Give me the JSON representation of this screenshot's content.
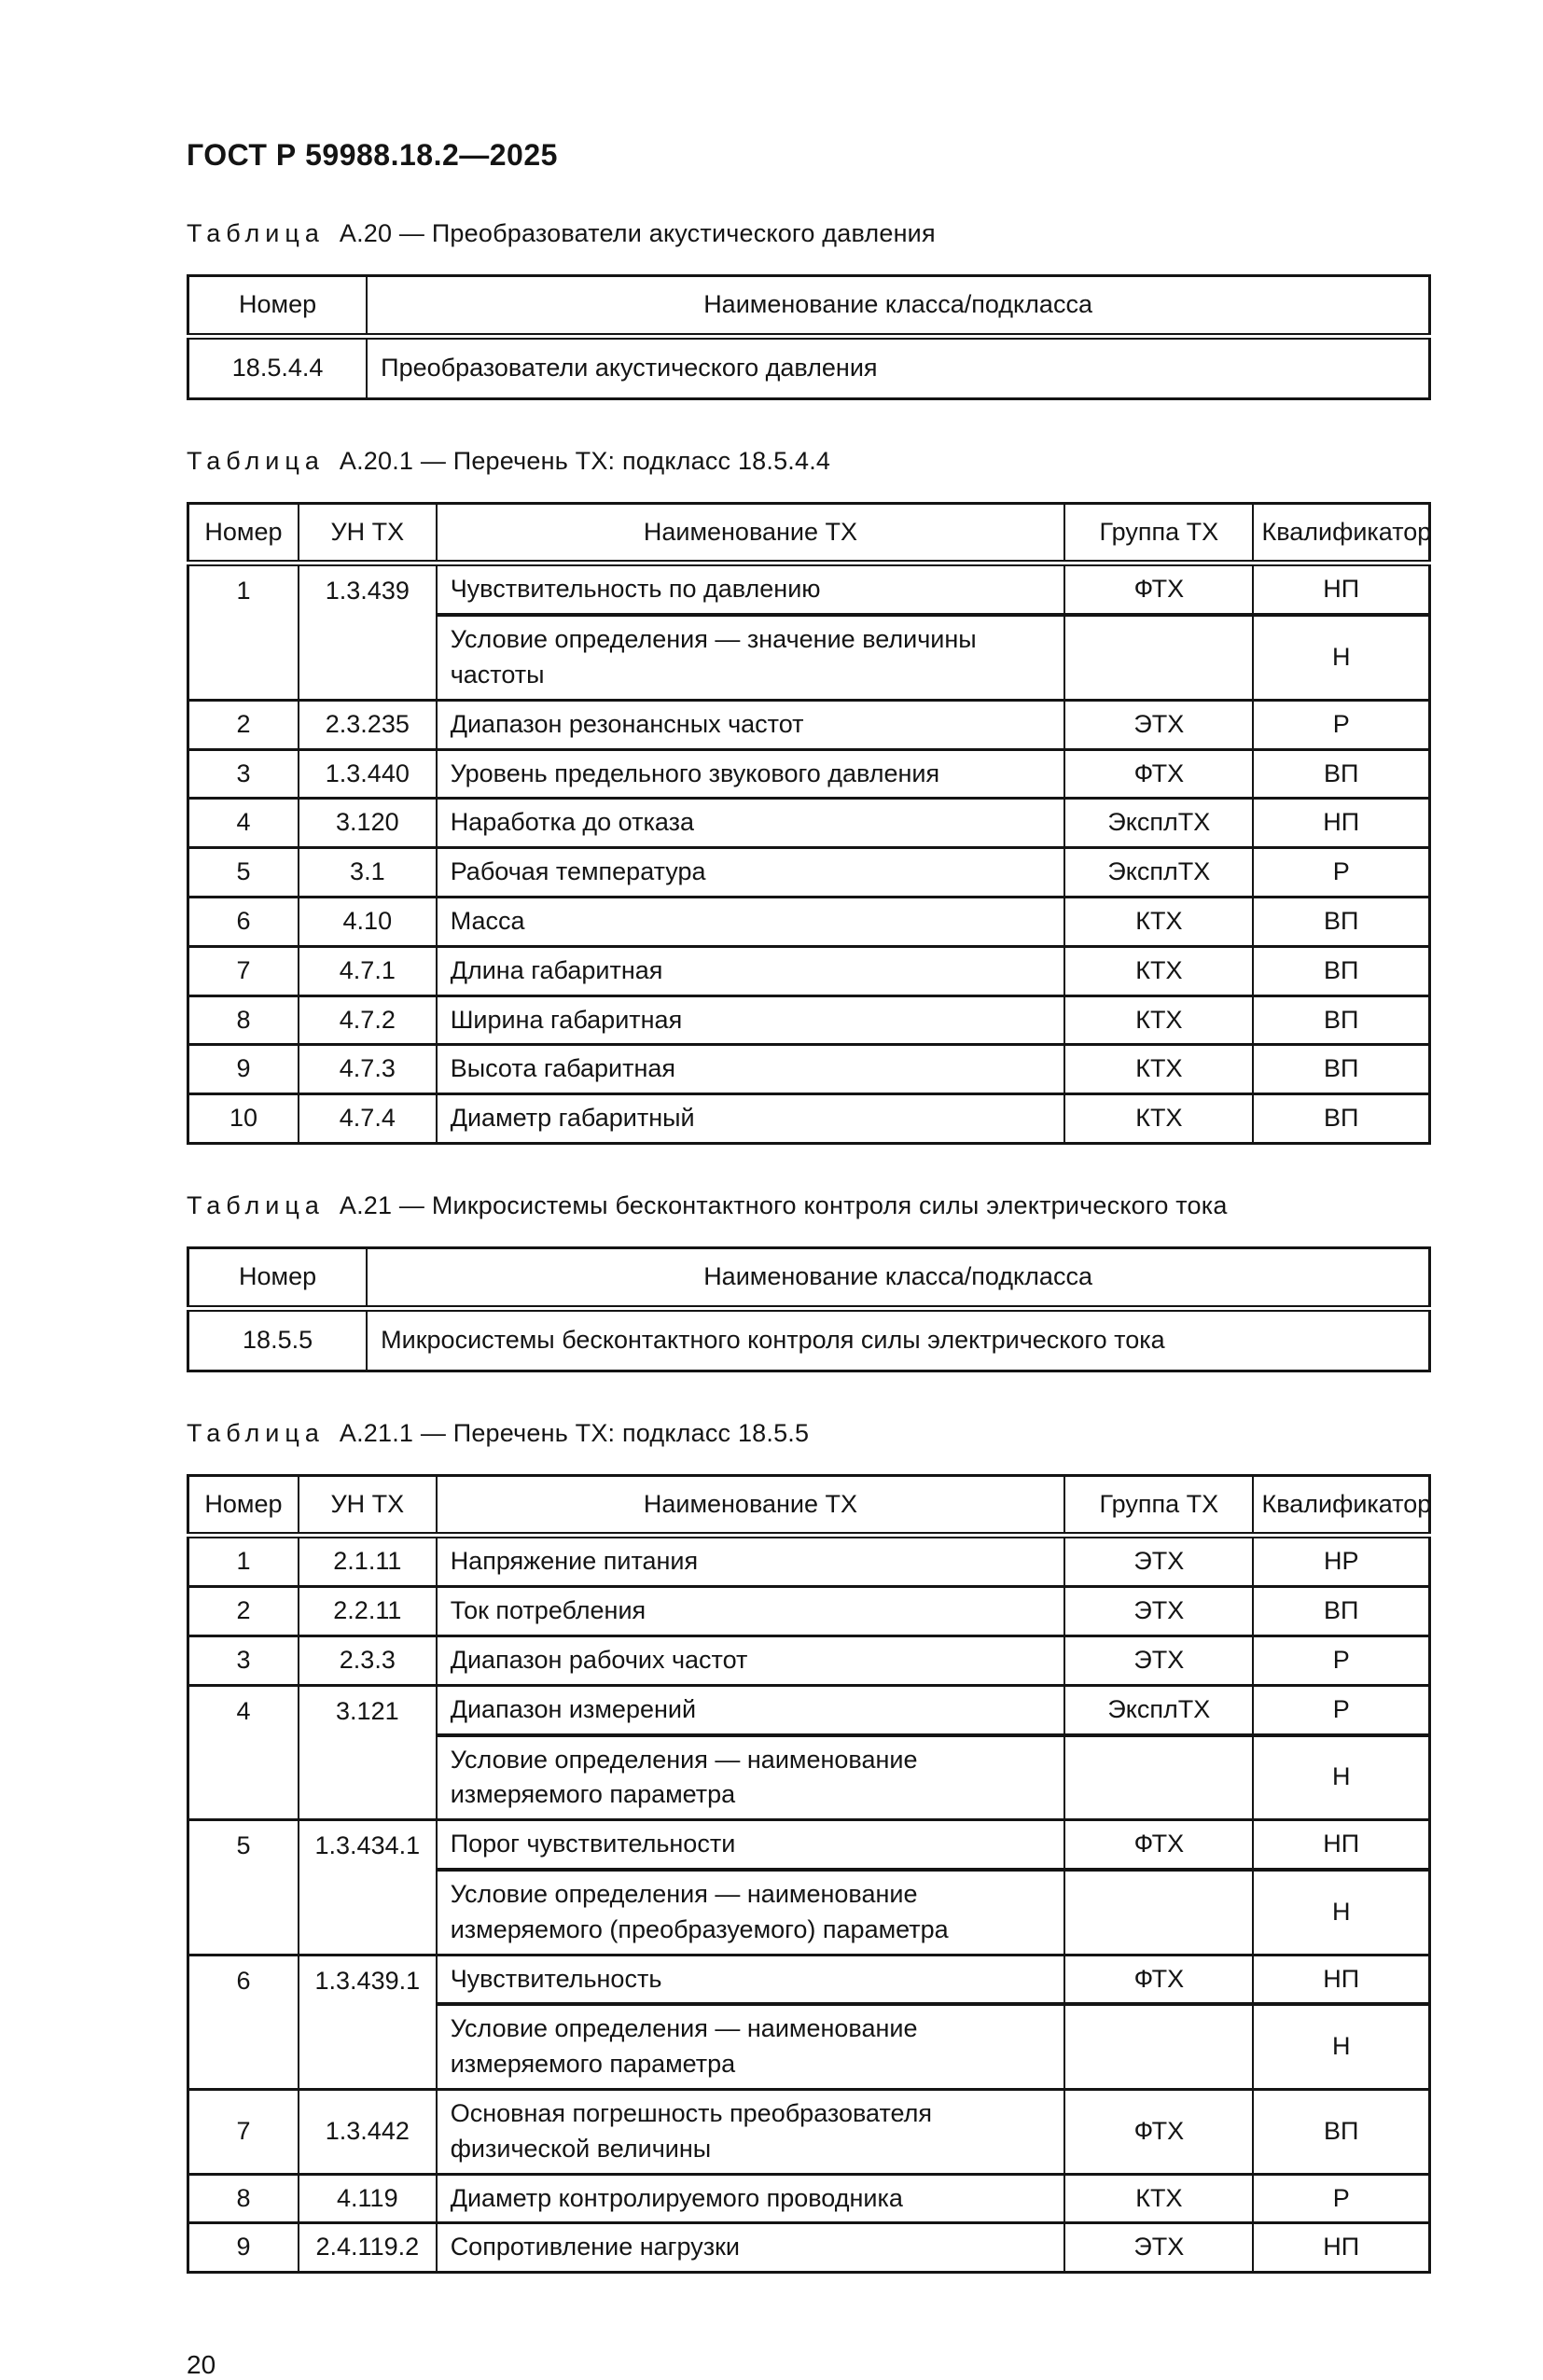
{
  "page": {
    "doc_code": "ГОСТ Р 59988.18.2—2025",
    "page_number": "20"
  },
  "colors": {
    "background": "#ffffff",
    "text": "#141414",
    "border": "#141414"
  },
  "sections": [
    {
      "type": "class",
      "caption": {
        "label": "Таблица",
        "text": "А.20 — Преобразователи акустического давления"
      },
      "headers": [
        "Номер",
        "Наименование класса/подкласса"
      ],
      "rows": [
        [
          "18.5.4.4",
          "Преобразователи акустического давления"
        ]
      ]
    },
    {
      "type": "tx",
      "caption": {
        "label": "Таблица",
        "text": "А.20.1 — Перечень ТХ: подкласс 18.5.4.4"
      },
      "headers": [
        "Номер",
        "УН ТХ",
        "Наименование ТХ",
        "Группа ТХ",
        "Квалификатор"
      ],
      "rows": [
        {
          "num": "1",
          "un": "1.3.439",
          "name": "Чувствительность по давлению",
          "group": "ФТХ",
          "qual": "НП",
          "sub": {
            "name": "Условие определения — значение величины частоты",
            "group": "",
            "qual": "Н"
          }
        },
        {
          "num": "2",
          "un": "2.3.235",
          "name": "Диапазон резонансных частот",
          "group": "ЭТХ",
          "qual": "Р"
        },
        {
          "num": "3",
          "un": "1.3.440",
          "name": "Уровень предельного звукового давления",
          "group": "ФТХ",
          "qual": "ВП"
        },
        {
          "num": "4",
          "un": "3.120",
          "name": "Наработка до отказа",
          "group": "ЭксплТХ",
          "qual": "НП"
        },
        {
          "num": "5",
          "un": "3.1",
          "name": "Рабочая температура",
          "group": "ЭксплТХ",
          "qual": "Р"
        },
        {
          "num": "6",
          "un": "4.10",
          "name": "Масса",
          "group": "КТХ",
          "qual": "ВП"
        },
        {
          "num": "7",
          "un": "4.7.1",
          "name": "Длина габаритная",
          "group": "КТХ",
          "qual": "ВП"
        },
        {
          "num": "8",
          "un": "4.7.2",
          "name": "Ширина габаритная",
          "group": "КТХ",
          "qual": "ВП"
        },
        {
          "num": "9",
          "un": "4.7.3",
          "name": "Высота габаритная",
          "group": "КТХ",
          "qual": "ВП"
        },
        {
          "num": "10",
          "un": "4.7.4",
          "name": "Диаметр габаритный",
          "group": "КТХ",
          "qual": "ВП"
        }
      ]
    },
    {
      "type": "class",
      "caption": {
        "label": "Таблица",
        "text": "А.21 — Микросистемы бесконтактного контроля силы электрического тока"
      },
      "headers": [
        "Номер",
        "Наименование класса/подкласса"
      ],
      "rows": [
        [
          "18.5.5",
          "Микросистемы бесконтактного контроля силы электрического тока"
        ]
      ]
    },
    {
      "type": "tx",
      "caption": {
        "label": "Таблица",
        "text": "А.21.1 — Перечень ТХ: подкласс 18.5.5"
      },
      "headers": [
        "Номер",
        "УН ТХ",
        "Наименование ТХ",
        "Группа ТХ",
        "Квалификатор"
      ],
      "rows": [
        {
          "num": "1",
          "un": "2.1.11",
          "name": "Напряжение питания",
          "group": "ЭТХ",
          "qual": "НР"
        },
        {
          "num": "2",
          "un": "2.2.11",
          "name": "Ток потребления",
          "group": "ЭТХ",
          "qual": "ВП"
        },
        {
          "num": "3",
          "un": "2.3.3",
          "name": "Диапазон рабочих частот",
          "group": "ЭТХ",
          "qual": "Р"
        },
        {
          "num": "4",
          "un": "3.121",
          "name": "Диапазон измерений",
          "group": "ЭксплТХ",
          "qual": "Р",
          "sub": {
            "name": "Условие определения — наименование измеряемого параметра",
            "group": "",
            "qual": "Н"
          }
        },
        {
          "num": "5",
          "un": "1.3.434.1",
          "name": "Порог чувствительности",
          "group": "ФТХ",
          "qual": "НП",
          "sub": {
            "name": "Условие определения — наименование измеряемого (преобразуемого) параметра",
            "group": "",
            "qual": "Н"
          }
        },
        {
          "num": "6",
          "un": "1.3.439.1",
          "name": "Чувствительность",
          "group": "ФТХ",
          "qual": "НП",
          "sub": {
            "name": "Условие определения — наименование измеряемого параметра",
            "group": "",
            "qual": "Н"
          }
        },
        {
          "num": "7",
          "un": "1.3.442",
          "name": "Основная погрешность преобразователя физической величины",
          "group": "ФТХ",
          "qual": "ВП"
        },
        {
          "num": "8",
          "un": "4.119",
          "name": "Диаметр контролируемого проводника",
          "group": "КТХ",
          "qual": "Р"
        },
        {
          "num": "9",
          "un": "2.4.119.2",
          "name": "Сопротивление нагрузки",
          "group": "ЭТХ",
          "qual": "НП"
        }
      ]
    }
  ]
}
